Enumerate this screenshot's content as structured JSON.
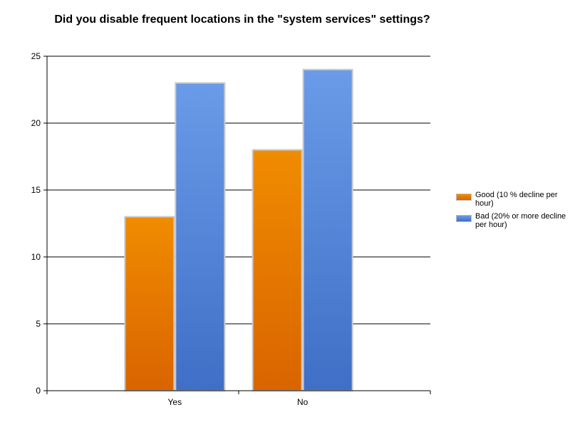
{
  "chart_data": {
    "type": "bar",
    "title": "Did you disable frequent locations in the \"system services\" settings?",
    "categories": [
      "Yes",
      "No"
    ],
    "series": [
      {
        "name": "Good (10 % decline per hour)",
        "values": [
          13,
          18
        ],
        "color": "#f08c00",
        "color_dark": "#d96400"
      },
      {
        "name": "Bad (20% or more decline per hour)",
        "values": [
          23,
          24
        ],
        "color": "#6a9be8",
        "color_dark": "#3f6fc6"
      }
    ],
    "ylim": [
      0,
      25
    ],
    "yticks": [
      0,
      5,
      10,
      15,
      20,
      25
    ],
    "grid": true,
    "legend_position": "right"
  }
}
